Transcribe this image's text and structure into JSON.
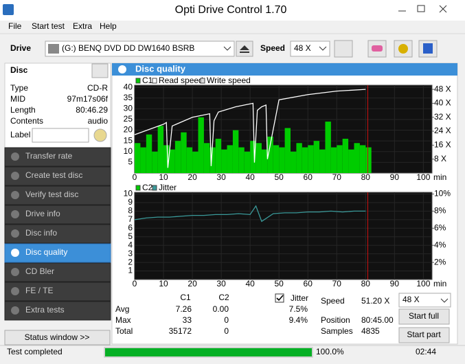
{
  "window": {
    "title": "Opti Drive Control 1.70"
  },
  "menu": [
    "File",
    "Start test",
    "Extra",
    "Help"
  ],
  "toolbar": {
    "drive_label": "Drive",
    "drive": "(G:)  BENQ DVD DD DW1640 BSRB",
    "speed_label": "Speed",
    "speed": "48 X"
  },
  "disc": {
    "title": "Disc",
    "rows": [
      [
        "Type",
        "CD-R"
      ],
      [
        "MID",
        "97m17s06f"
      ],
      [
        "Length",
        "80:46.29"
      ],
      [
        "Contents",
        "audio"
      ]
    ],
    "label": "Label"
  },
  "nav": {
    "items": [
      "Transfer rate",
      "Create test disc",
      "Verify test disc",
      "Drive info",
      "Disc info",
      "Disc quality",
      "CD Bler",
      "FE / TE",
      "Extra tests"
    ],
    "selected": 5
  },
  "status_window": "Status window >>",
  "panel": {
    "title": "Disc quality"
  },
  "chart_data": [
    {
      "type": "combo",
      "x_unit": "min",
      "end_marker": 80.75,
      "xlim": [
        0,
        103
      ],
      "xticks": [
        0,
        10,
        20,
        30,
        40,
        50,
        60,
        70,
        80,
        90,
        100
      ],
      "ylim": [
        0,
        41
      ],
      "yticks": [
        5,
        10,
        15,
        20,
        25,
        30,
        35,
        40
      ],
      "y2lim": [
        0,
        50.4
      ],
      "y2ticks": [
        {
          "value": 8,
          "label": "8 X"
        },
        {
          "value": 16,
          "label": "16 X"
        },
        {
          "value": 24,
          "label": "24 X"
        },
        {
          "value": 32,
          "label": "32 X"
        },
        {
          "value": 40,
          "label": "40 X"
        },
        {
          "value": 48,
          "label": "48 X"
        }
      ],
      "series": [
        {
          "name": "C1",
          "type": "bar",
          "color": "#00cc00",
          "x": [
            0,
            2,
            4,
            6,
            8,
            10,
            12,
            14,
            16,
            18,
            20,
            22,
            24,
            26,
            28,
            30,
            32,
            34,
            36,
            38,
            40,
            42,
            44,
            46,
            48,
            50,
            52,
            54,
            56,
            58,
            60,
            62,
            64,
            66,
            68,
            70,
            72,
            74,
            76,
            78,
            80
          ],
          "values": [
            14,
            12,
            18,
            10,
            22,
            13,
            11,
            15,
            19,
            12,
            10,
            26,
            14,
            12,
            16,
            11,
            13,
            20,
            12,
            10,
            15,
            14,
            11,
            17,
            13,
            12,
            21,
            10,
            14,
            12,
            13,
            15,
            11,
            24,
            12,
            13,
            16,
            11,
            14,
            13,
            12
          ]
        },
        {
          "name": "Read speed",
          "type": "line",
          "axis": "y2",
          "color": "#ffffff",
          "x": [
            0,
            5,
            10,
            11,
            11.5,
            13,
            20,
            26,
            26.5,
            27.5,
            29,
            35,
            41,
            41.5,
            42.5,
            44,
            45.5,
            46,
            50,
            60,
            70,
            80
          ],
          "values": [
            22,
            25,
            28,
            29,
            3,
            27,
            32,
            34,
            4,
            30,
            35,
            38,
            40,
            6,
            36,
            38,
            39,
            8,
            42,
            45,
            47,
            48
          ]
        },
        {
          "name": "Write speed",
          "type": "line",
          "axis": "y2",
          "color": "#dddddd",
          "x": [],
          "values": []
        }
      ]
    },
    {
      "type": "combo",
      "x_unit": "min",
      "end_marker": 80.75,
      "xlim": [
        0,
        103
      ],
      "xticks": [
        0,
        10,
        20,
        30,
        40,
        50,
        60,
        70,
        80,
        90,
        100
      ],
      "ylim": [
        0,
        10.2
      ],
      "yticks": [
        1,
        2,
        3,
        4,
        5,
        6,
        7,
        8,
        9,
        10
      ],
      "y2lim": [
        0,
        10.2
      ],
      "y2ticks": [
        {
          "value": 2,
          "label": "2%"
        },
        {
          "value": 4,
          "label": "4%"
        },
        {
          "value": 6,
          "label": "6%"
        },
        {
          "value": 8,
          "label": "8%"
        },
        {
          "value": 10,
          "label": "10%"
        }
      ],
      "series": [
        {
          "name": "C2",
          "type": "bar",
          "color": "#00cc00",
          "x": [
            0,
            4,
            8,
            12,
            16,
            20,
            24,
            28,
            32,
            36,
            40,
            44,
            48,
            52,
            56,
            60,
            64,
            68,
            72,
            76,
            80
          ],
          "values": [
            0,
            0,
            0,
            0,
            0,
            0,
            0,
            0,
            0,
            0,
            0,
            0,
            0,
            0,
            0,
            0,
            0,
            0,
            0,
            0,
            0
          ]
        },
        {
          "name": "Jitter",
          "type": "line",
          "axis": "y2",
          "color": "#3a9a9a",
          "x": [
            0,
            4,
            8,
            12,
            16,
            20,
            24,
            28,
            32,
            36,
            40,
            42,
            44,
            48,
            52,
            56,
            60,
            64,
            68,
            72,
            76,
            80
          ],
          "values": [
            7.0,
            7.2,
            7.3,
            7.3,
            7.4,
            7.5,
            7.5,
            7.6,
            7.6,
            7.7,
            7.6,
            8.6,
            6.8,
            7.7,
            7.8,
            7.8,
            7.9,
            7.9,
            8.0,
            7.9,
            8.0,
            8.0
          ]
        }
      ]
    }
  ],
  "stats": {
    "columns": [
      "C1",
      "C2"
    ],
    "rows": [
      {
        "label": "Avg",
        "values": [
          "7.26",
          "0.00"
        ],
        "jitter": "7.5%"
      },
      {
        "label": "Max",
        "values": [
          "33",
          "0"
        ],
        "jitter": "9.4%"
      },
      {
        "label": "Total",
        "values": [
          "35172",
          "0"
        ]
      }
    ],
    "jitter_label": "Jitter",
    "jitter_checked": true
  },
  "info": [
    [
      "Speed",
      "51.20 X"
    ],
    [
      "Position",
      "80:45.00"
    ],
    [
      "Samples",
      "4835"
    ]
  ],
  "controls": {
    "speed": "48 X",
    "start_full": "Start full",
    "start_part": "Start part"
  },
  "status": {
    "text": "Test completed",
    "progress": 100,
    "progress_label": "100.0%",
    "time": "02:44"
  }
}
